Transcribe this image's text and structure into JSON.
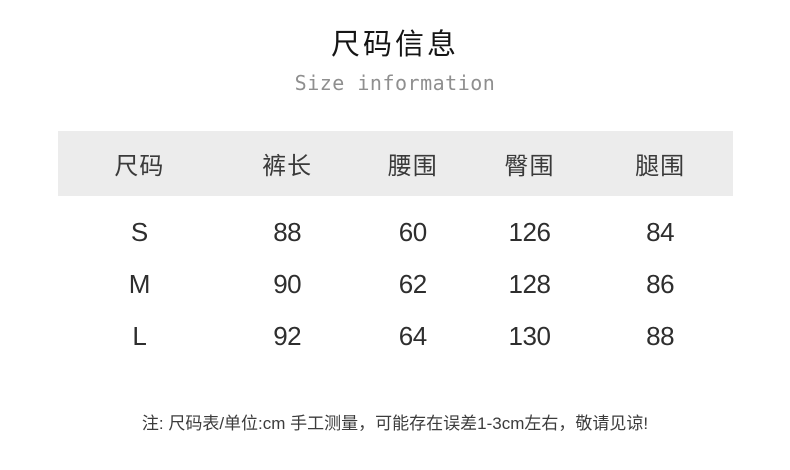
{
  "header": {
    "title_zh": "尺码信息",
    "subtitle_en": "Size information"
  },
  "size_chart": {
    "headers": [
      "尺码",
      "裤长",
      "腰围",
      "臀围",
      "腿围"
    ],
    "rows": [
      [
        "S",
        "88",
        "60",
        "126",
        "84"
      ],
      [
        "M",
        "90",
        "62",
        "128",
        "86"
      ],
      [
        "L",
        "92",
        "64",
        "130",
        "88"
      ]
    ]
  },
  "note": {
    "text": "注: 尺码表/单位:cm 手工测量，可能存在误差1-3cm左右，敬请见谅!"
  },
  "colors": {
    "header_band": "#ececec",
    "title_text": "#151515",
    "subtitle_text": "#8f8f8f",
    "body_text": "#2e2e2e"
  },
  "chart_data": {
    "type": "table",
    "title": "尺码信息",
    "subtitle": "Size information",
    "columns": [
      "尺码",
      "裤长",
      "腰围",
      "臀围",
      "腿围"
    ],
    "rows": [
      [
        "S",
        88,
        60,
        126,
        84
      ],
      [
        "M",
        90,
        62,
        128,
        86
      ],
      [
        "L",
        92,
        64,
        130,
        88
      ]
    ],
    "unit": "cm",
    "note": "注: 尺码表/单位:cm 手工测量，可能存在误差1-3cm左右，敬请见谅!"
  }
}
